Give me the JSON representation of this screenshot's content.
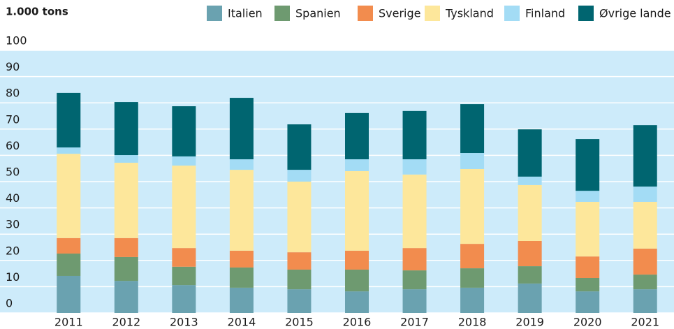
{
  "chart_data": {
    "type": "stacked_bar",
    "title": "1.000 tons",
    "categories": [
      "2011",
      "2012",
      "2013",
      "2014",
      "2015",
      "2016",
      "2017",
      "2018",
      "2019",
      "2020",
      "2021"
    ],
    "series": [
      {
        "name": "Italien",
        "color": "#6aa2b0",
        "values": [
          14.1,
          12.2,
          10.6,
          9.6,
          9.0,
          8.2,
          9.0,
          9.6,
          11.2,
          8.2,
          9.0
        ]
      },
      {
        "name": "Spanien",
        "color": "#6e9a70",
        "values": [
          8.5,
          9.1,
          7.0,
          7.7,
          7.5,
          8.3,
          7.2,
          7.4,
          6.6,
          5.1,
          5.6
        ]
      },
      {
        "name": "Sverige",
        "color": "#f28c4e",
        "values": [
          5.9,
          7.2,
          7.1,
          6.4,
          6.6,
          7.2,
          8.5,
          9.3,
          9.6,
          8.2,
          9.9
        ]
      },
      {
        "name": "Tyskland",
        "color": "#fde79b",
        "values": [
          32.1,
          28.7,
          31.4,
          30.8,
          26.9,
          30.3,
          28.0,
          28.5,
          21.3,
          20.8,
          17.8
        ]
      },
      {
        "name": "Finland",
        "color": "#a3dcf5",
        "values": [
          2.4,
          2.9,
          3.5,
          4.0,
          4.5,
          4.5,
          5.8,
          6.1,
          3.2,
          4.2,
          5.8
        ]
      },
      {
        "name": "Øvrige lande",
        "color": "#006570",
        "values": [
          20.8,
          20.2,
          19.1,
          23.4,
          17.3,
          17.6,
          18.4,
          18.6,
          18.0,
          19.7,
          23.4
        ]
      }
    ],
    "ylim": [
      0,
      100
    ],
    "yticks": [
      0,
      10,
      20,
      30,
      40,
      50,
      60,
      70,
      80,
      90,
      100
    ],
    "grid": true
  }
}
